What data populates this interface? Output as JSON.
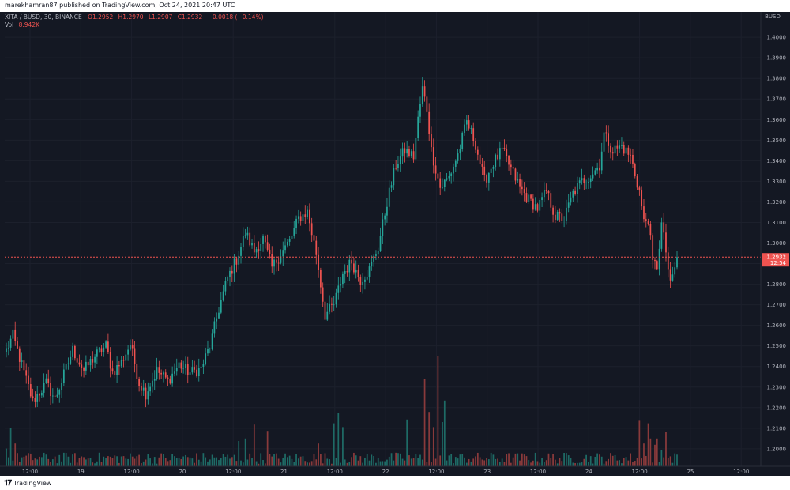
{
  "publisher_line": "marekhamran87 published on TradingView.com, Oct 24, 2021 20:47 UTC",
  "brand": "TradingView",
  "legend": {
    "symbol": "XITA / BUSD, 30, BINANCE",
    "open": "O1.2952",
    "high": "H1.2970",
    "low": "L1.2907",
    "close": "C1.2932",
    "change": "−0.0018 (−0.14%)",
    "volume_label": "Vol",
    "volume_value": "8.942K"
  },
  "colors": {
    "up": "#26a69a",
    "down": "#ef5350",
    "background": "#141823",
    "text": "#b2b5be",
    "price_tag": "#ef5350"
  },
  "chart_data": {
    "type": "candlestick",
    "quote_currency": "BUSD",
    "yaxis_ticks": [
      "1.4000",
      "1.3900",
      "1.3800",
      "1.3700",
      "1.3600",
      "1.3500",
      "1.3400",
      "1.3300",
      "1.3200",
      "1.3100",
      "1.3000",
      "1.2900",
      "1.2800",
      "1.2700",
      "1.2600",
      "1.2500",
      "1.2400",
      "1.2300",
      "1.2200",
      "1.2100",
      "1.2000"
    ],
    "ylim": [
      1.1915,
      1.4085
    ],
    "xaxis_ticks": [
      "12:00",
      "19",
      "12:00",
      "20",
      "12:00",
      "21",
      "12:00",
      "22",
      "12:00",
      "23",
      "12:00",
      "24",
      "12:00",
      "25",
      "12:00"
    ],
    "last_price": "1.2932",
    "last_price_timer": "12:54",
    "waypoints_close": [
      [
        0,
        1.248
      ],
      [
        3,
        1.255
      ],
      [
        8,
        1.237
      ],
      [
        12,
        1.223
      ],
      [
        18,
        1.232
      ],
      [
        22,
        1.224
      ],
      [
        26,
        1.236
      ],
      [
        30,
        1.248
      ],
      [
        35,
        1.238
      ],
      [
        40,
        1.245
      ],
      [
        45,
        1.25
      ],
      [
        48,
        1.237
      ],
      [
        52,
        1.242
      ],
      [
        56,
        1.251
      ],
      [
        60,
        1.232
      ],
      [
        63,
        1.227
      ],
      [
        68,
        1.238
      ],
      [
        73,
        1.233
      ],
      [
        78,
        1.241
      ],
      [
        83,
        1.237
      ],
      [
        88,
        1.239
      ],
      [
        92,
        1.25
      ],
      [
        96,
        1.268
      ],
      [
        100,
        1.283
      ],
      [
        104,
        1.292
      ],
      [
        108,
        1.305
      ],
      [
        112,
        1.296
      ],
      [
        116,
        1.302
      ],
      [
        120,
        1.288
      ],
      [
        124,
        1.295
      ],
      [
        128,
        1.301
      ],
      [
        132,
        1.312
      ],
      [
        136,
        1.315
      ],
      [
        140,
        1.295
      ],
      [
        144,
        1.265
      ],
      [
        148,
        1.27
      ],
      [
        152,
        1.285
      ],
      [
        156,
        1.291
      ],
      [
        160,
        1.282
      ],
      [
        164,
        1.287
      ],
      [
        168,
        1.298
      ],
      [
        172,
        1.32
      ],
      [
        176,
        1.338
      ],
      [
        180,
        1.345
      ],
      [
        184,
        1.342
      ],
      [
        186,
        1.36
      ],
      [
        188,
        1.375
      ],
      [
        190,
        1.365
      ],
      [
        192,
        1.345
      ],
      [
        196,
        1.327
      ],
      [
        200,
        1.332
      ],
      [
        204,
        1.343
      ],
      [
        208,
        1.359
      ],
      [
        212,
        1.348
      ],
      [
        216,
        1.33
      ],
      [
        220,
        1.339
      ],
      [
        224,
        1.345
      ],
      [
        228,
        1.336
      ],
      [
        232,
        1.327
      ],
      [
        236,
        1.321
      ],
      [
        240,
        1.317
      ],
      [
        244,
        1.325
      ],
      [
        248,
        1.313
      ],
      [
        252,
        1.312
      ],
      [
        256,
        1.324
      ],
      [
        260,
        1.33
      ],
      [
        264,
        1.333
      ],
      [
        268,
        1.338
      ],
      [
        270,
        1.353
      ],
      [
        274,
        1.345
      ],
      [
        278,
        1.347
      ],
      [
        282,
        1.342
      ],
      [
        286,
        1.325
      ],
      [
        288,
        1.31
      ],
      [
        290,
        1.312
      ],
      [
        292,
        1.29
      ],
      [
        294,
        1.289
      ],
      [
        296,
        1.309
      ],
      [
        298,
        1.296
      ],
      [
        300,
        1.279
      ],
      [
        303,
        1.293
      ]
    ],
    "candle_count": 304,
    "volume_spikes": [
      [
        0,
        0.14
      ],
      [
        2,
        0.3
      ],
      [
        4,
        0.18
      ],
      [
        60,
        0.09
      ],
      [
        105,
        0.2
      ],
      [
        108,
        0.22
      ],
      [
        112,
        0.33
      ],
      [
        118,
        0.28
      ],
      [
        141,
        0.18
      ],
      [
        148,
        0.34
      ],
      [
        150,
        0.42
      ],
      [
        152,
        0.31
      ],
      [
        181,
        0.37
      ],
      [
        189,
        0.69
      ],
      [
        191,
        0.43
      ],
      [
        193,
        0.31
      ],
      [
        195,
        0.87
      ],
      [
        197,
        0.35
      ],
      [
        198,
        0.52
      ],
      [
        286,
        0.36
      ],
      [
        288,
        0.18
      ],
      [
        290,
        0.34
      ],
      [
        291,
        0.22
      ],
      [
        293,
        0.17
      ],
      [
        294,
        0.22
      ],
      [
        296,
        0.13
      ],
      [
        298,
        0.27
      ]
    ]
  }
}
